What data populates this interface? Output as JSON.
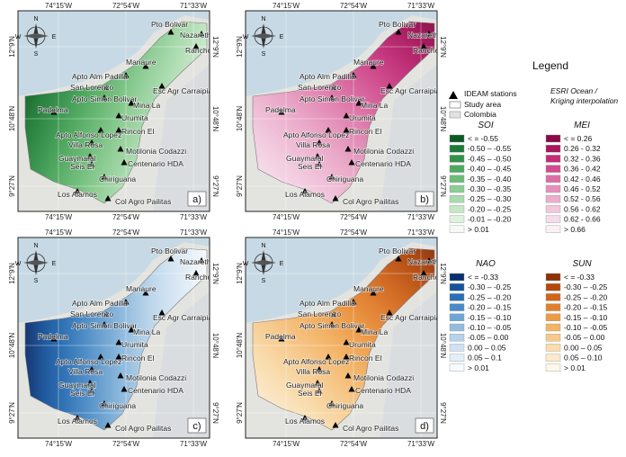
{
  "legend": {
    "title": "Legend",
    "items": [
      "IDEAM stations",
      "Study area",
      "Colombia"
    ],
    "basemap": [
      "ESRI Ocean /",
      "Kriging interpolation"
    ]
  },
  "coordinates": {
    "lon": [
      "74°15'W",
      "72°54'W",
      "71°33'W"
    ],
    "lat": [
      "12°9'N",
      "10°48'N",
      "9°27'N"
    ]
  },
  "compass": [
    "N",
    "S",
    "W",
    "E"
  ],
  "stations": [
    "Pto Bolivar",
    "Nazareth",
    "Rancho Grande",
    "Manaure",
    "Apto Alm Padilla",
    "Esc Agr Carraipia",
    "San Lorenzo",
    "Apto Simon Bolivar",
    "Mina La",
    "Padelma",
    "Urumita",
    "Rincon El",
    "Apto Alfonso Lopez",
    "Villa Rosa",
    "Motilonia Codazzi",
    "Guaymaral",
    "Seis El",
    "Centenario HDA",
    "Chiriguana",
    "Los Alamos",
    "Col Agro Pailitas"
  ],
  "panels": [
    {
      "label": "a)",
      "index": "SOI",
      "classes": [
        "< = -0.55",
        "-0.50 – -0.55",
        "-0.45 – -0.50",
        "-0.40 – -0.45",
        "-0.35 – -0.40",
        "-0.30 – -0.35",
        "-0.25 – -0.30",
        "-0.20 – -0.25",
        "-0.01 – -0.20",
        "> 0.01"
      ],
      "colors": [
        "#0b5a23",
        "#1f7a35",
        "#33924a",
        "#4ea95e",
        "#6cbc77",
        "#8ccd93",
        "#a8dbad",
        "#c4e7c6",
        "#def2de",
        "#f5fbf4"
      ]
    },
    {
      "label": "b)",
      "index": "MEI",
      "classes": [
        "< = 0.26",
        "0.26 - 0.32",
        "0.32 - 0.36",
        "0.36 - 0.42",
        "0.42 - 0.46",
        "0.46 - 0.52",
        "0.52 - 0.56",
        "0.56 - 0.62",
        "0.62 - 0.66",
        "> 0.66"
      ],
      "colors": [
        "#8a0a46",
        "#a9165e",
        "#c22c78",
        "#d14c8e",
        "#dc6ea4",
        "#e58fb9",
        "#edadcc",
        "#f2c6dc",
        "#f6dcea",
        "#fbf0f6"
      ]
    },
    {
      "label": "c)",
      "index": "NAO",
      "classes": [
        "< = -0.33",
        "-0.30 – -0.25",
        "-0.25 – -0.20",
        "-0.20 – -0.15",
        "-0.15 – -0.10",
        "-0.10 – -0.05",
        "-0.05 – 0.00",
        "0.00 – 0.05",
        "0.05 – 0.1",
        "> 0.01"
      ],
      "colors": [
        "#0c2f6e",
        "#17549c",
        "#2a70b5",
        "#4a8ac6",
        "#6ea5d4",
        "#92bde0",
        "#b4d2ea",
        "#cfe2f2",
        "#e3eef8",
        "#f7fbfe"
      ]
    },
    {
      "label": "d)",
      "index": "SUN",
      "classes": [
        "< = -0.33",
        "-0.30 – -0.25",
        "-0.25 – -0.20",
        "-0.20 – -0.15",
        "-0.15 – -0.10",
        "-0.10 – -0.05",
        "-0.05 – 0.00",
        "0.00 – 0.05",
        "0.05 – 0.10",
        "> 0.01"
      ],
      "colors": [
        "#8e3208",
        "#b3490c",
        "#d0641a",
        "#e27f2c",
        "#ee9b45",
        "#f4b466",
        "#f8c98a",
        "#fbdcab",
        "#fdeacb",
        "#fff7e8"
      ]
    }
  ]
}
